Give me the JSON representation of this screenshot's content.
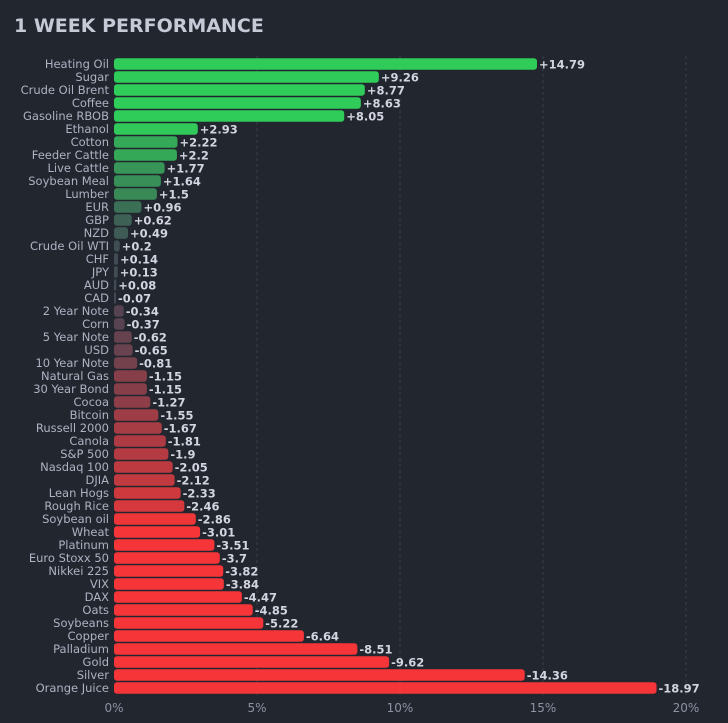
{
  "chart_data": {
    "type": "bar",
    "orientation": "horizontal",
    "title": "1 WEEK PERFORMANCE",
    "categories": [
      "Heating Oil",
      "Sugar",
      "Crude Oil Brent",
      "Coffee",
      "Gasoline RBOB",
      "Ethanol",
      "Cotton",
      "Feeder Cattle",
      "Live Cattle",
      "Soybean Meal",
      "Lumber",
      "EUR",
      "GBP",
      "NZD",
      "Crude Oil WTI",
      "CHF",
      "JPY",
      "AUD",
      "CAD",
      "2 Year Note",
      "Corn",
      "5 Year Note",
      "USD",
      "10 Year Note",
      "Natural Gas",
      "30 Year Bond",
      "Cocoa",
      "Bitcoin",
      "Russell 2000",
      "Canola",
      "S&P 500",
      "Nasdaq 100",
      "DJIA",
      "Lean Hogs",
      "Rough Rice",
      "Soybean oil",
      "Wheat",
      "Platinum",
      "Euro Stoxx 50",
      "Nikkei 225",
      "VIX",
      "DAX",
      "Oats",
      "Soybeans",
      "Copper",
      "Palladium",
      "Gold",
      "Silver",
      "Orange Juice"
    ],
    "values": [
      14.79,
      9.26,
      8.77,
      8.63,
      8.05,
      2.93,
      2.22,
      2.2,
      1.77,
      1.64,
      1.5,
      0.96,
      0.62,
      0.49,
      0.2,
      0.14,
      0.13,
      0.08,
      -0.07,
      -0.34,
      -0.37,
      -0.62,
      -0.65,
      -0.81,
      -1.15,
      -1.15,
      -1.27,
      -1.55,
      -1.67,
      -1.81,
      -1.9,
      -2.05,
      -2.12,
      -2.33,
      -2.46,
      -2.86,
      -3.01,
      -3.51,
      -3.7,
      -3.82,
      -3.84,
      -4.47,
      -4.85,
      -5.22,
      -6.64,
      -8.51,
      -9.62,
      -14.36,
      -18.97
    ],
    "value_labels": [
      "+14.79",
      "+9.26",
      "+8.77",
      "+8.63",
      "+8.05",
      "+2.93",
      "+2.22",
      "+2.2",
      "+1.77",
      "+1.64",
      "+1.5",
      "+0.96",
      "+0.62",
      "+0.49",
      "+0.2",
      "+0.14",
      "+0.13",
      "+0.08",
      "-0.07",
      "-0.34",
      "-0.37",
      "-0.62",
      "-0.65",
      "-0.81",
      "-1.15",
      "-1.15",
      "-1.27",
      "-1.55",
      "-1.67",
      "-1.81",
      "-1.9",
      "-2.05",
      "-2.12",
      "-2.33",
      "-2.46",
      "-2.86",
      "-3.01",
      "-3.51",
      "-3.7",
      "-3.82",
      "-3.84",
      "-4.47",
      "-4.85",
      "-5.22",
      "-6.64",
      "-8.51",
      "-9.62",
      "-14.36",
      "-18.97"
    ],
    "bar_length": "absolute value",
    "xlim": [
      0,
      20
    ],
    "xticks": [
      "0%",
      "5%",
      "10%",
      "15%",
      "20%"
    ],
    "xtick_values": [
      0,
      5,
      10,
      15,
      20
    ],
    "grid": "vertical dashed",
    "colors": {
      "positive": "#30cc5a",
      "negative": "#f63538",
      "neutral": "#414554",
      "background": "#22262f"
    }
  }
}
